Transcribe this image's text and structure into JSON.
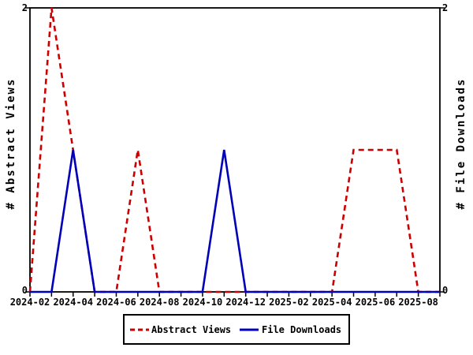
{
  "chart_data": {
    "type": "line",
    "title": "",
    "x": [
      "2024-02",
      "2024-03",
      "2024-04",
      "2024-05",
      "2024-06",
      "2024-07",
      "2024-08",
      "2024-09",
      "2024-10",
      "2024-11",
      "2024-12",
      "2025-01",
      "2025-02",
      "2025-03",
      "2025-04",
      "2025-05",
      "2025-06",
      "2025-07",
      "2025-08",
      "2025-09"
    ],
    "x_tick_labels": [
      "2024-02",
      "2024-04",
      "2024-06",
      "2024-08",
      "2024-10",
      "2024-12",
      "2025-02",
      "2025-04",
      "2025-06",
      "2025-08"
    ],
    "ylim": [
      0,
      2
    ],
    "yticks_left": [
      "2",
      "0"
    ],
    "yticks_right": [
      "2",
      "0"
    ],
    "ylabel_left": "# Abstract Views",
    "ylabel_right": "# File Downloads",
    "grid": false,
    "legend_position": "bottom",
    "axis_color": "#000000",
    "series": [
      {
        "name": "Abstract Views",
        "color": "#cc0000",
        "style": "dashed",
        "values": [
          0,
          2,
          1,
          0,
          0,
          1,
          0,
          0,
          0,
          0,
          0,
          0,
          0,
          0,
          0,
          1,
          1,
          1,
          0,
          0
        ]
      },
      {
        "name": "File Downloads",
        "color": "#0000bb",
        "style": "solid",
        "values": [
          0,
          0,
          1,
          0,
          0,
          0,
          0,
          0,
          0,
          1,
          0,
          0,
          0,
          0,
          0,
          0,
          0,
          0,
          0,
          0
        ]
      }
    ]
  }
}
